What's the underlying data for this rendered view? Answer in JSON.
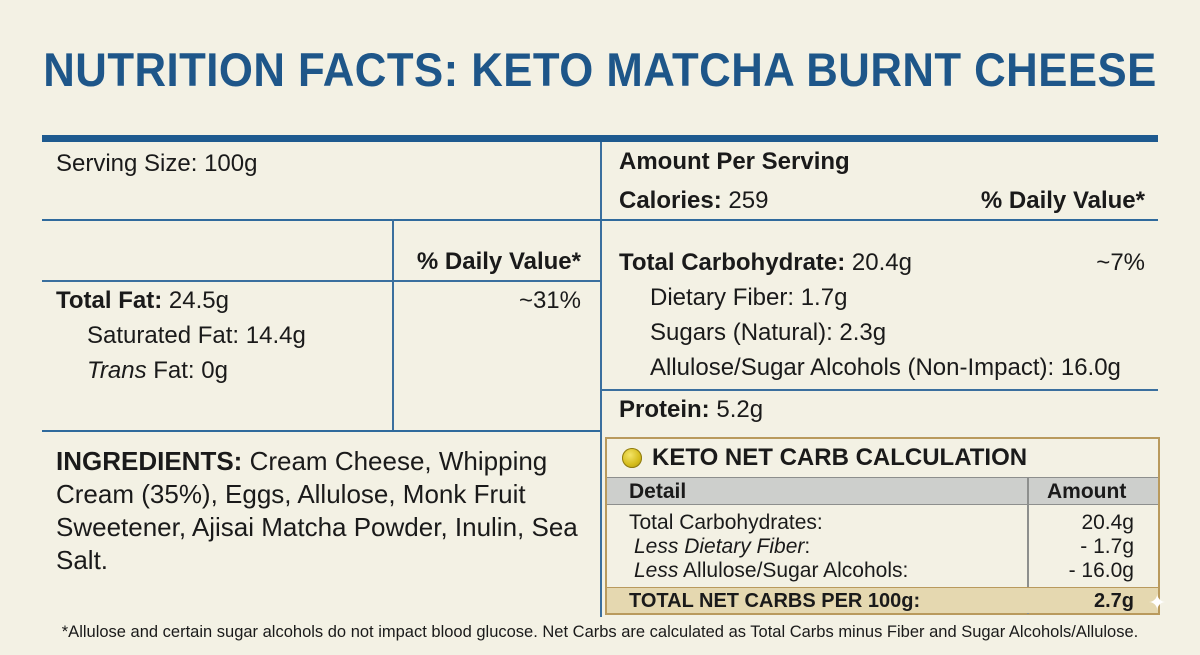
{
  "title": "NUTRITION FACTS: KETO MATCHA BURNT CHEESE",
  "left": {
    "serving_size": "Serving Size: 100g",
    "dv_header": "% Daily Value*",
    "total_fat_label": "Total Fat:",
    "total_fat_value": "24.5g",
    "total_fat_dv": "~31%",
    "saturated_fat": "Saturated Fat: 14.4g",
    "trans_fat_italic": "Trans",
    "trans_fat_rest": "Fat: 0g",
    "ingredients_label": "INGREDIENTS:",
    "ingredients_text": "Cream Cheese, Whipping Cream (35%), Eggs, Allulose, Monk Fruit Sweetener, Ajisai Matcha Powder, Inulin, Sea Salt."
  },
  "right": {
    "amount_per_serving": "Amount Per Serving",
    "calories_label": "Calories:",
    "calories_value": "259",
    "dv_header": "% Daily Value*",
    "total_carb_label": "Total Carbohydrate:",
    "total_carb_value": "20.4g",
    "total_carb_dv": "~7%",
    "dietary_fiber": "Dietary Fiber: 1.7g",
    "sugars": "Sugars (Natural): 2.3g",
    "allulose": "Allulose/Sugar Alcohols (Non-Impact): 16.0g",
    "protein_label": "Protein:",
    "protein_value": "5.2g"
  },
  "keto": {
    "title": "KETO NET CARB CALCULATION",
    "col_detail": "Detail",
    "col_amount": "Amount",
    "row1_label": "Total Carbohydrates:",
    "row1_value": "20.4g",
    "row2_italic": "Less Dietary Fiber",
    "row2_rest": ":",
    "row2_value": "- 1.7g",
    "row3_italic": "Less",
    "row3_rest": "Allulose/Sugar Alcohols:",
    "row3_value": "- 16.0g",
    "total_label": "TOTAL NET CARBS PER 100g:",
    "total_value": "2.7g"
  },
  "footnote": "*Allulose and certain sugar alcohols do not impact blood glucose. Net Carbs are calculated as Total Carbs minus Fiber and Sugar Alcohols/Allulose."
}
